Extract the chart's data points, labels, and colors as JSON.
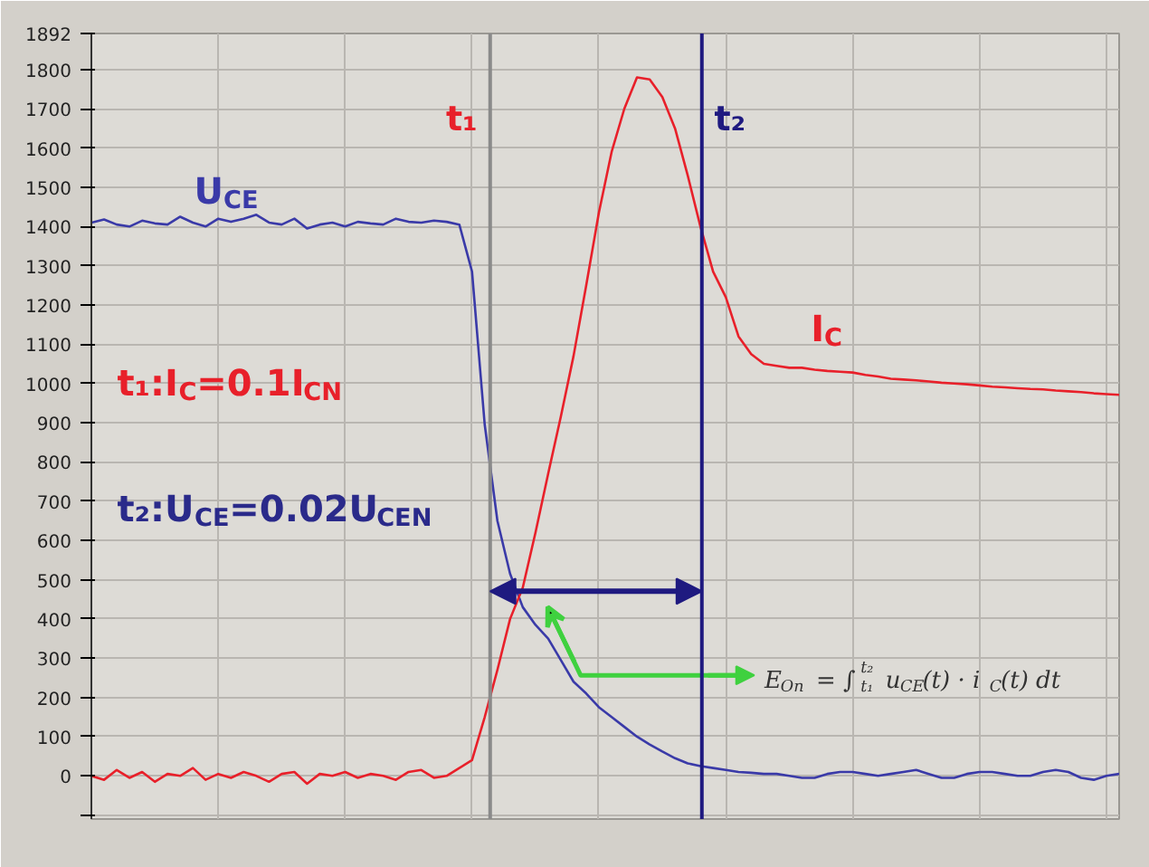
{
  "chart_data": {
    "type": "line",
    "grid": true,
    "categories": [
      null,
      null,
      null,
      null,
      null,
      null,
      null,
      null,
      null,
      null,
      null,
      null,
      null,
      null,
      null,
      null,
      null,
      null,
      null,
      null,
      null,
      null,
      null,
      null,
      null,
      null,
      null,
      null,
      null,
      null,
      null,
      null,
      null,
      null,
      null,
      null,
      null,
      null,
      null,
      null,
      null,
      null,
      null,
      null,
      null,
      null,
      null,
      null,
      null,
      null,
      null,
      null,
      null,
      null,
      null,
      null,
      null,
      null,
      null,
      null,
      null,
      null,
      null,
      null,
      null,
      null,
      null,
      null,
      null,
      null,
      null,
      null,
      null,
      null,
      null,
      null,
      null,
      null,
      null,
      null,
      null,
      null
    ],
    "ylim": [
      -110,
      1892
    ],
    "yticks": [
      {
        "value": -100,
        "label": null
      },
      0,
      100,
      200,
      300,
      400,
      500,
      600,
      700,
      800,
      900,
      1000,
      1100,
      1200,
      1300,
      1400,
      1500,
      1600,
      1700,
      1800,
      1892
    ],
    "series": [
      {
        "name": "U$_{CE}$",
        "color": "#3a3aa8",
        "values": [
          1410,
          1418,
          1405,
          1400,
          1415,
          1408,
          1405,
          1425,
          1410,
          1400,
          1420,
          1412,
          1420,
          1430,
          1410,
          1405,
          1420,
          1395,
          1405,
          1410,
          1400,
          1412,
          1408,
          1405,
          1420,
          1412,
          1410,
          1415,
          1412,
          1405,
          1285,
          895,
          650,
          515,
          430,
          385,
          350,
          295,
          240,
          210,
          175,
          150,
          125,
          100,
          80,
          62,
          45,
          32,
          25,
          20,
          15,
          10,
          8,
          5,
          5,
          0,
          -5,
          -5,
          5,
          10,
          10,
          5,
          0,
          5,
          10,
          15,
          5,
          -5,
          -5,
          5,
          10,
          10,
          5,
          0,
          0,
          10,
          15,
          10,
          -5,
          -10,
          0,
          5
        ]
      },
      {
        "name": "I$_{C}$",
        "color": "#e8202a",
        "values": [
          0,
          -10,
          15,
          -5,
          10,
          -15,
          5,
          0,
          20,
          -10,
          5,
          -5,
          10,
          0,
          -15,
          5,
          10,
          -20,
          5,
          0,
          10,
          -5,
          5,
          0,
          -10,
          10,
          15,
          -5,
          0,
          20,
          40,
          150,
          270,
          400,
          480,
          620,
          770,
          916,
          1070,
          1250,
          1436,
          1590,
          1700,
          1780,
          1775,
          1730,
          1650,
          1530,
          1400,
          1285,
          1220,
          1120,
          1075,
          1050,
          1045,
          1040,
          1040,
          1035,
          1032,
          1030,
          1028,
          1022,
          1018,
          1012,
          1010,
          1008,
          1005,
          1002,
          1000,
          998,
          995,
          992,
          990,
          988,
          986,
          985,
          982,
          980,
          978,
          975,
          973,
          971
        ]
      }
    ],
    "annotations": [
      "t₁:I$_{C}$=0.1I$_{CN}$",
      "t₂:U$_{CE}$=0.02U$_{CEN}$",
      "E$_{On}$ = ∫$^{t₂}$$_{t₁}$ u$_{CE}$(t) · i$_{C}$(t) dt",
      "t₁",
      "t₂"
    ]
  }
}
